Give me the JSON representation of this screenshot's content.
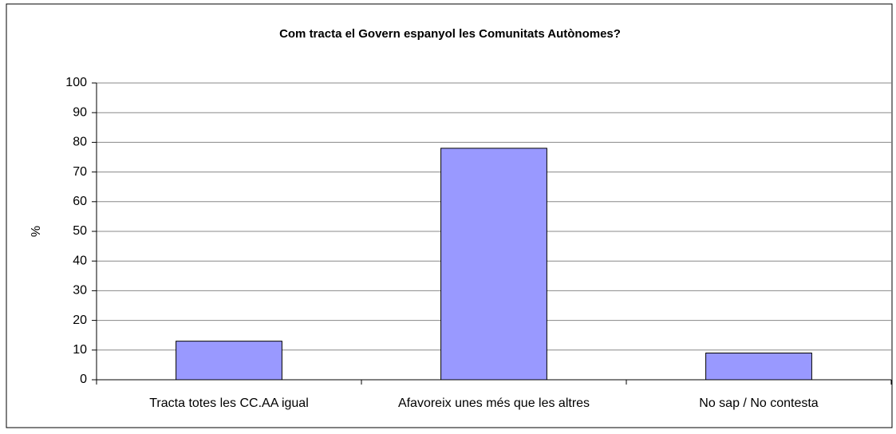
{
  "chart_data": {
    "type": "bar",
    "title": "Com tracta el Govern espanyol les Comunitats Autònomes?",
    "y_label": "%",
    "categories": [
      "Tracta totes les CC.AA igual",
      "Afavoreix unes més que les altres",
      "No sap / No contesta"
    ],
    "values": [
      13,
      78,
      9
    ],
    "color": "#9999ff",
    "ylim": [
      0,
      100
    ],
    "yticks": [
      0,
      10,
      20,
      30,
      40,
      50,
      60,
      70,
      80,
      90,
      100
    ],
    "grid": true
  }
}
